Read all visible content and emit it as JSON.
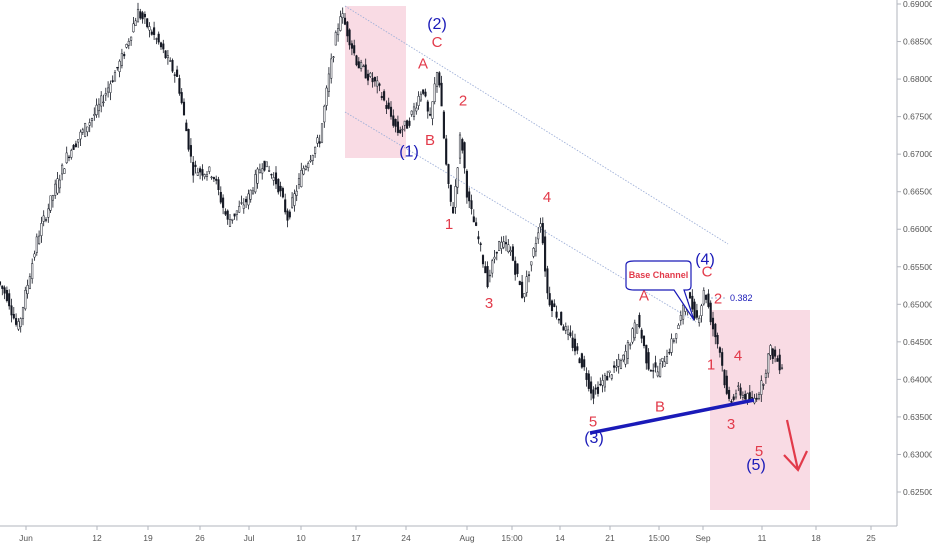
{
  "chart_data": {
    "type": "candlestick",
    "y_axis": {
      "ticks": [
        "0.69000",
        "0.68500",
        "0.68000",
        "0.67500",
        "0.67000",
        "0.66500",
        "0.66000",
        "0.65500",
        "0.65000",
        "0.64500",
        "0.64000",
        "0.63500",
        "0.63000",
        "0.62500"
      ],
      "ylim": [
        0.625,
        0.69
      ]
    },
    "x_axis": {
      "ticks": [
        "Jun",
        "12",
        "19",
        "26",
        "Jul",
        "10",
        "17",
        "24",
        "Aug",
        "15:00",
        "14",
        "21",
        "15:00",
        "Sep",
        "11",
        "18",
        "25"
      ]
    },
    "price_path": [
      {
        "t": 0,
        "p": 0.653
      },
      {
        "t": 10,
        "p": 0.651
      },
      {
        "t": 20,
        "p": 0.6465
      },
      {
        "t": 40,
        "p": 0.659
      },
      {
        "t": 70,
        "p": 0.67
      },
      {
        "t": 100,
        "p": 0.676
      },
      {
        "t": 125,
        "p": 0.683
      },
      {
        "t": 140,
        "p": 0.689
      },
      {
        "t": 160,
        "p": 0.685
      },
      {
        "t": 180,
        "p": 0.68
      },
      {
        "t": 195,
        "p": 0.668
      },
      {
        "t": 215,
        "p": 0.6675
      },
      {
        "t": 230,
        "p": 0.661
      },
      {
        "t": 250,
        "p": 0.664
      },
      {
        "t": 265,
        "p": 0.669
      },
      {
        "t": 280,
        "p": 0.666
      },
      {
        "t": 290,
        "p": 0.6615
      },
      {
        "t": 305,
        "p": 0.668
      },
      {
        "t": 322,
        "p": 0.672
      },
      {
        "t": 332,
        "p": 0.681
      },
      {
        "t": 343,
        "p": 0.689
      },
      {
        "t": 360,
        "p": 0.682
      },
      {
        "t": 380,
        "p": 0.679
      },
      {
        "t": 400,
        "p": 0.673
      },
      {
        "t": 410,
        "p": 0.674
      },
      {
        "t": 425,
        "p": 0.679
      },
      {
        "t": 432,
        "p": 0.674
      },
      {
        "t": 440,
        "p": 0.682
      },
      {
        "t": 450,
        "p": 0.666
      },
      {
        "t": 455,
        "p": 0.662
      },
      {
        "t": 463,
        "p": 0.673
      },
      {
        "t": 470,
        "p": 0.664
      },
      {
        "t": 480,
        "p": 0.659
      },
      {
        "t": 490,
        "p": 0.653
      },
      {
        "t": 500,
        "p": 0.658
      },
      {
        "t": 512,
        "p": 0.6575
      },
      {
        "t": 525,
        "p": 0.651
      },
      {
        "t": 535,
        "p": 0.6565
      },
      {
        "t": 543,
        "p": 0.6615
      },
      {
        "t": 550,
        "p": 0.651
      },
      {
        "t": 570,
        "p": 0.646
      },
      {
        "t": 585,
        "p": 0.642
      },
      {
        "t": 595,
        "p": 0.638
      },
      {
        "t": 610,
        "p": 0.6405
      },
      {
        "t": 625,
        "p": 0.6425
      },
      {
        "t": 640,
        "p": 0.648
      },
      {
        "t": 650,
        "p": 0.642
      },
      {
        "t": 660,
        "p": 0.641
      },
      {
        "t": 675,
        "p": 0.645
      },
      {
        "t": 690,
        "p": 0.651
      },
      {
        "t": 700,
        "p": 0.648
      },
      {
        "t": 707,
        "p": 0.652
      },
      {
        "t": 715,
        "p": 0.647
      },
      {
        "t": 722,
        "p": 0.644
      },
      {
        "t": 730,
        "p": 0.637
      },
      {
        "t": 740,
        "p": 0.6385
      },
      {
        "t": 755,
        "p": 0.637
      },
      {
        "t": 765,
        "p": 0.6395
      },
      {
        "t": 772,
        "p": 0.644
      },
      {
        "t": 782,
        "p": 0.642
      }
    ],
    "wave_labels_red": [
      {
        "text": "A",
        "t": 423,
        "p": 0.6814
      },
      {
        "text": "C",
        "t": 437,
        "p": 0.6843
      },
      {
        "text": "B",
        "t": 430,
        "p": 0.6712
      },
      {
        "text": "2",
        "t": 463,
        "p": 0.6765
      },
      {
        "text": "1",
        "t": 449,
        "p": 0.66
      },
      {
        "text": "4",
        "t": 547,
        "p": 0.6636
      },
      {
        "text": "3",
        "t": 489,
        "p": 0.6495
      },
      {
        "text": "A",
        "t": 644,
        "p": 0.6505
      },
      {
        "text": "B",
        "t": 660,
        "p": 0.6357
      },
      {
        "text": "5",
        "t": 593,
        "p": 0.6337
      },
      {
        "text": "C",
        "t": 707,
        "p": 0.6537
      },
      {
        "text": "2",
        "t": 718,
        "p": 0.6501
      },
      {
        "text": "1",
        "t": 711,
        "p": 0.6413
      },
      {
        "text": "4",
        "t": 738,
        "p": 0.6425
      },
      {
        "text": "3",
        "t": 731,
        "p": 0.6334
      },
      {
        "text": "5",
        "t": 759,
        "p": 0.6298
      }
    ],
    "wave_labels_blue": [
      {
        "text": "(2)",
        "t": 437,
        "p": 0.6867
      },
      {
        "text": "(1)",
        "t": 409,
        "p": 0.6697
      },
      {
        "text": "(3)",
        "t": 594,
        "p": 0.6315
      },
      {
        "text": "(4)",
        "t": 705,
        "p": 0.6553
      },
      {
        "text": "(5)",
        "t": 756,
        "p": 0.6279
      }
    ],
    "annotations": {
      "base_channel": "Base Channel",
      "fib_level": "0.382"
    },
    "colors": {
      "up_candle": "#131722",
      "down_candle": "#131722",
      "wave_red": "#e23a4a",
      "wave_blue": "#1a1ab8",
      "highlight_box": "#f8d5df",
      "trendline": "#1a1ab8",
      "channel": "#6d7fb0",
      "forecast_arrow": "#e23a4a"
    }
  }
}
